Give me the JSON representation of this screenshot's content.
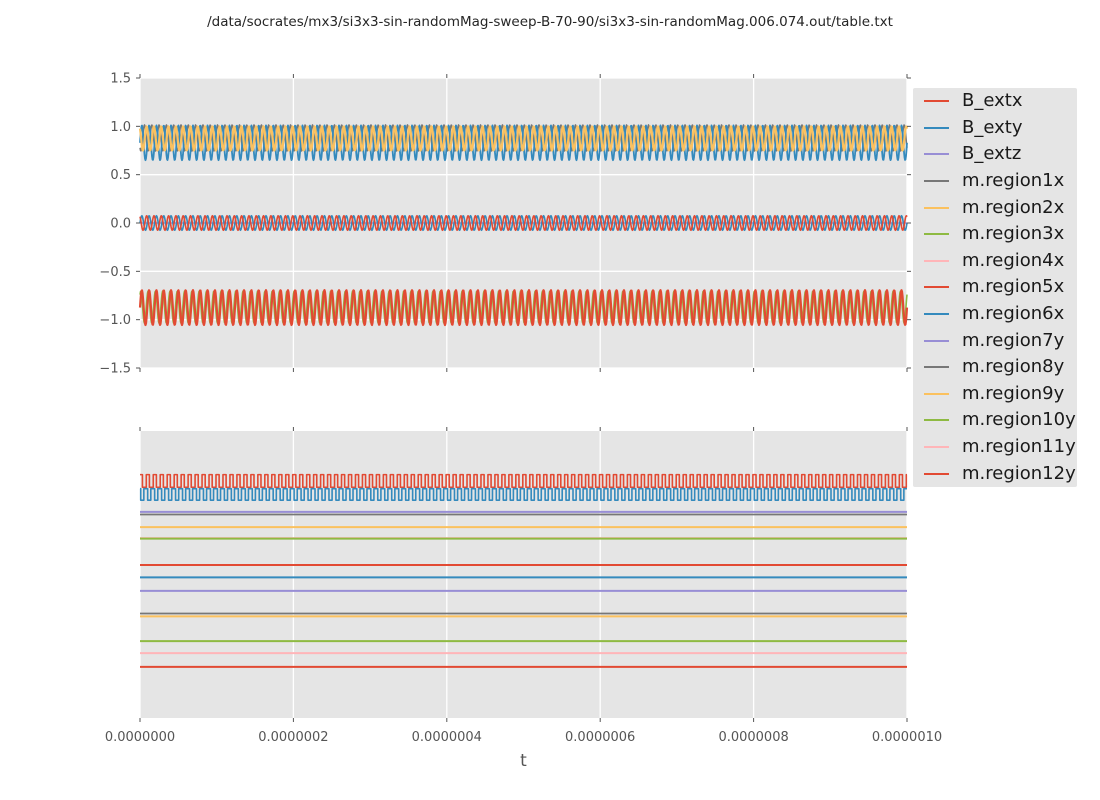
{
  "title": "/data/socrates/mx3/si3x3-sin-randomMag-sweep-B-70-90/si3x3-sin-randomMag.006.074.out/table.txt",
  "xlabel": "t",
  "styles": {
    "axes_bg": "#E5E5E5",
    "grid_color": "#FFFFFF",
    "tick_color": "#555555",
    "tick_label_color": "#555555",
    "legend_bg": "#E5E5E5",
    "legend_text_color": "#1A1A1A",
    "title_color": "#262626"
  },
  "palette": {
    "red": "#E24A33",
    "blue": "#348ABD",
    "purple": "#988ED5",
    "gray": "#777777",
    "orange": "#FBC15E",
    "green": "#8EBA42",
    "pink": "#FFB5B8"
  },
  "legend": {
    "items": [
      {
        "label": "B_extx",
        "color": "#E24A33"
      },
      {
        "label": "B_exty",
        "color": "#348ABD"
      },
      {
        "label": "B_extz",
        "color": "#988ED5"
      },
      {
        "label": "m.region1x",
        "color": "#777777"
      },
      {
        "label": "m.region2x",
        "color": "#FBC15E"
      },
      {
        "label": "m.region3x",
        "color": "#8EBA42"
      },
      {
        "label": "m.region4x",
        "color": "#FFB5B8"
      },
      {
        "label": "m.region5x",
        "color": "#E24A33"
      },
      {
        "label": "m.region6x",
        "color": "#348ABD"
      },
      {
        "label": "m.region7y",
        "color": "#988ED5"
      },
      {
        "label": "m.region8y",
        "color": "#777777"
      },
      {
        "label": "m.region9y",
        "color": "#FBC15E"
      },
      {
        "label": "m.region10y",
        "color": "#8EBA42"
      },
      {
        "label": "m.region11y",
        "color": "#FFB5B8"
      },
      {
        "label": "m.region12y",
        "color": "#E24A33"
      }
    ]
  },
  "chart_data": [
    {
      "type": "line",
      "plot": "top",
      "title": "",
      "xlabel": "",
      "ylabel": "",
      "y_space": "data",
      "xlim": [
        0,
        1e-06
      ],
      "ylim": [
        -1.5,
        1.5
      ],
      "grid": {
        "vertical": true,
        "horizontal": true
      },
      "xticks": {
        "values": [
          0,
          2e-07,
          4e-07,
          6e-07,
          8e-07,
          1e-06
        ],
        "labels": [
          "0.0000000",
          "0.0000002",
          "0.0000004",
          "0.0000006",
          "0.0000008",
          "0.0000010"
        ],
        "show_labels": false
      },
      "yticks": {
        "values": [
          1.5,
          1.0,
          0.5,
          0.0,
          -0.5,
          -1.0,
          -1.5
        ],
        "labels": [
          "1.5",
          "1.0",
          "0.5",
          "0.0",
          "−0.5",
          "−1.0",
          "−1.5"
        ],
        "show_labels": true
      },
      "series": [
        {
          "name": "B_extz",
          "color": "#988ED5",
          "wave": "const",
          "value": 0.0,
          "lw": 1.5
        },
        {
          "name": "m.region1x",
          "color": "#777777",
          "wave": "sine",
          "center": 0.88,
          "amplitude": 0.135,
          "cycles": 105,
          "phase": 4.0,
          "lw": 1.5
        },
        {
          "name": "B_exty",
          "color": "#348ABD",
          "wave": "sine",
          "center": 0.83,
          "amplitude": 0.18,
          "cycles": 105,
          "phase": 0.0,
          "lw": 1.8
        },
        {
          "name": "m.region2x",
          "color": "#FBC15E",
          "wave": "sine",
          "center": 0.875,
          "amplitude": 0.125,
          "cycles": 105,
          "phase": 2.2,
          "lw": 2.2
        },
        {
          "name": "m.region6x",
          "color": "#348ABD",
          "wave": "sine",
          "center": 0.0,
          "amplitude": 0.075,
          "cycles": 105,
          "phase": 0.0,
          "lw": 1.6
        },
        {
          "name": "B_extx",
          "color": "#E24A33",
          "wave": "sine",
          "center": 0.0,
          "amplitude": 0.075,
          "cycles": 105,
          "phase": 2.1,
          "lw": 1.6
        },
        {
          "name": "m.region3x",
          "color": "#8EBA42",
          "wave": "sine",
          "center": -0.87,
          "amplitude": 0.165,
          "cycles": 105,
          "phase": 0.9,
          "lw": 1.6
        },
        {
          "name": "m.region5x",
          "color": "#E24A33",
          "wave": "sine",
          "center": -0.875,
          "amplitude": 0.18,
          "cycles": 105,
          "phase": 0.0,
          "lw": 2.2
        }
      ]
    },
    {
      "type": "line",
      "plot": "bottom",
      "title": "",
      "xlabel": "t",
      "ylabel": "",
      "y_space": "fraction_of_height_from_top",
      "xlim": [
        0,
        1e-06
      ],
      "grid": {
        "vertical": true,
        "horizontal": false
      },
      "xticks": {
        "values": [
          0,
          2e-07,
          4e-07,
          6e-07,
          8e-07,
          1e-06
        ],
        "labels": [
          "0.0000000",
          "0.0000002",
          "0.0000004",
          "0.0000006",
          "0.0000008",
          "0.0000010"
        ],
        "show_labels": true
      },
      "yticks": {
        "values": [],
        "labels": [],
        "show_labels": false
      },
      "series": [
        {
          "name": "B_extx",
          "color": "#E24A33",
          "wave": "square",
          "high": 0.152,
          "low": 0.196,
          "cycles": 110,
          "duty": 0.45,
          "phase": 0.1,
          "lw": 1.6
        },
        {
          "name": "B_exty",
          "color": "#348ABD",
          "wave": "square",
          "high": 0.201,
          "low": 0.241,
          "cycles": 110,
          "duty": 0.55,
          "phase": 0.45,
          "lw": 1.6
        },
        {
          "name": "B_extz",
          "color": "#988ED5",
          "wave": "const",
          "value": 0.282,
          "lw": 2.0
        },
        {
          "name": "m.region1x",
          "color": "#777777",
          "wave": "const",
          "value": 0.291,
          "lw": 1.8
        },
        {
          "name": "m.region2x",
          "color": "#FBC15E",
          "wave": "const",
          "value": 0.335,
          "lw": 2.0
        },
        {
          "name": "m.region4x",
          "color": "#FFB5B8",
          "wave": "const",
          "value": 0.373,
          "lw": 1.8
        },
        {
          "name": "m.region3x",
          "color": "#8EBA42",
          "wave": "const",
          "value": 0.375,
          "lw": 2.0
        },
        {
          "name": "m.region5x",
          "color": "#E24A33",
          "wave": "const",
          "value": 0.467,
          "lw": 2.0
        },
        {
          "name": "m.region6x",
          "color": "#348ABD",
          "wave": "const",
          "value": 0.51,
          "lw": 2.0
        },
        {
          "name": "m.region7y",
          "color": "#988ED5",
          "wave": "const",
          "value": 0.557,
          "lw": 2.0
        },
        {
          "name": "m.region8y",
          "color": "#777777",
          "wave": "const",
          "value": 0.636,
          "lw": 1.8
        },
        {
          "name": "m.region9y",
          "color": "#FBC15E",
          "wave": "const",
          "value": 0.646,
          "lw": 2.0
        },
        {
          "name": "m.region10y",
          "color": "#8EBA42",
          "wave": "const",
          "value": 0.732,
          "lw": 2.0
        },
        {
          "name": "m.region11y",
          "color": "#FFB5B8",
          "wave": "const",
          "value": 0.774,
          "lw": 2.0
        },
        {
          "name": "m.region12y",
          "color": "#E24A33",
          "wave": "const",
          "value": 0.822,
          "lw": 2.0
        }
      ]
    }
  ]
}
